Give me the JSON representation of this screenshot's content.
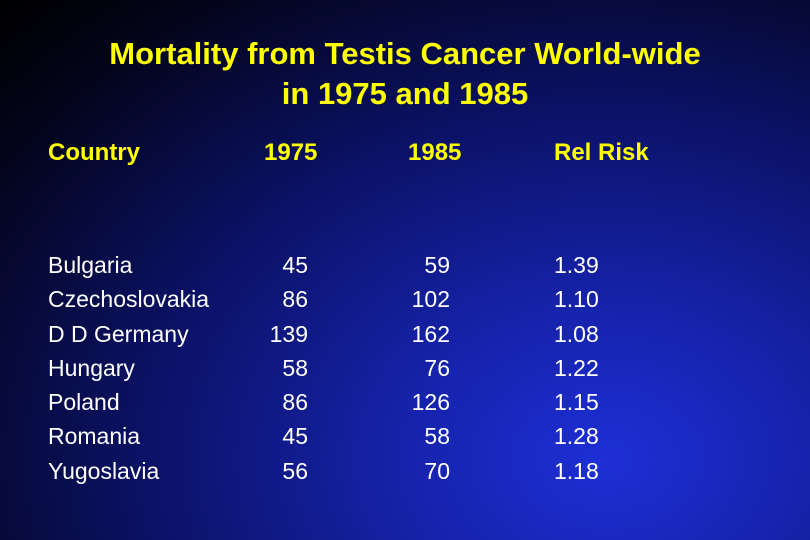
{
  "chart_data": {
    "type": "table",
    "title_lines": [
      "Mortality from Testis Cancer World-wide",
      "in 1975 and 1985"
    ],
    "columns": [
      "Country",
      "1975",
      "1985",
      "Rel Risk"
    ],
    "rows": [
      {
        "country": "Bulgaria",
        "y1975": "45",
        "y1985": "59",
        "rel_risk": "1.39"
      },
      {
        "country": "Czechoslovakia",
        "y1975": "86",
        "y1985": "102",
        "rel_risk": "1.10"
      },
      {
        "country": "D D Germany",
        "y1975": "139",
        "y1985": "162",
        "rel_risk": "1.08"
      },
      {
        "country": "Hungary",
        "y1975": "58",
        "y1985": "76",
        "rel_risk": "1.22"
      },
      {
        "country": "Poland",
        "y1975": "86",
        "y1985": "126",
        "rel_risk": "1.15"
      },
      {
        "country": "Romania",
        "y1975": "45",
        "y1985": "58",
        "rel_risk": "1.28"
      },
      {
        "country": "Yugoslavia",
        "y1975": "56",
        "y1985": "70",
        "rel_risk": "1.18"
      }
    ]
  },
  "colors": {
    "title": "#ffff00",
    "header": "#ffff00",
    "cell_text": "#ffffff",
    "background_bright": "#1e2fd6",
    "background_dark": "#000000"
  }
}
